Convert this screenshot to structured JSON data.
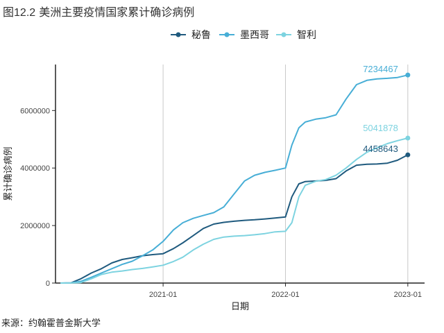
{
  "title_prefix": "图",
  "title_number": "12.2",
  "title_text": "美洲主要疫情国家累计确诊病例",
  "source": "来源：约翰霍普金斯大学",
  "colors": {
    "秘鲁": "#1f5a7e",
    "墨西哥": "#47aed6",
    "智利": "#7dd3e0"
  },
  "chart_data": {
    "type": "line",
    "xlabel": "日期",
    "ylabel": "累计确诊病例",
    "x_ticks": [
      "2021-01",
      "2022-01",
      "2023-01"
    ],
    "y_ticks": [
      0,
      2000000,
      4000000,
      6000000
    ],
    "ylim": [
      0,
      7600000
    ],
    "xlim": [
      "2020-02-15",
      "2023-02-20"
    ],
    "grid": "vertical major lines at x ticks",
    "legend_position": "top",
    "series": [
      {
        "name": "秘鲁",
        "end_label": "4458643",
        "points": [
          [
            "2020-03-01",
            0
          ],
          [
            "2020-04-01",
            5000
          ],
          [
            "2020-05-01",
            150000
          ],
          [
            "2020-06-01",
            350000
          ],
          [
            "2020-07-01",
            500000
          ],
          [
            "2020-08-01",
            700000
          ],
          [
            "2020-09-01",
            820000
          ],
          [
            "2020-10-01",
            880000
          ],
          [
            "2020-11-01",
            950000
          ],
          [
            "2020-12-01",
            990000
          ],
          [
            "2021-01-01",
            1020000
          ],
          [
            "2021-02-01",
            1200000
          ],
          [
            "2021-03-01",
            1400000
          ],
          [
            "2021-04-01",
            1650000
          ],
          [
            "2021-05-01",
            1900000
          ],
          [
            "2021-06-01",
            2050000
          ],
          [
            "2021-07-01",
            2110000
          ],
          [
            "2021-08-01",
            2150000
          ],
          [
            "2021-09-01",
            2180000
          ],
          [
            "2021-10-01",
            2200000
          ],
          [
            "2021-11-01",
            2230000
          ],
          [
            "2021-12-01",
            2260000
          ],
          [
            "2022-01-01",
            2300000
          ],
          [
            "2022-01-20",
            3000000
          ],
          [
            "2022-02-10",
            3450000
          ],
          [
            "2022-03-01",
            3530000
          ],
          [
            "2022-04-01",
            3550000
          ],
          [
            "2022-05-01",
            3570000
          ],
          [
            "2022-06-01",
            3630000
          ],
          [
            "2022-07-01",
            3900000
          ],
          [
            "2022-08-01",
            4100000
          ],
          [
            "2022-09-01",
            4130000
          ],
          [
            "2022-10-01",
            4140000
          ],
          [
            "2022-11-01",
            4170000
          ],
          [
            "2022-12-01",
            4270000
          ],
          [
            "2023-01-01",
            4458643
          ]
        ]
      },
      {
        "name": "墨西哥",
        "end_label": "7234467",
        "points": [
          [
            "2020-03-01",
            0
          ],
          [
            "2020-04-01",
            5000
          ],
          [
            "2020-05-01",
            60000
          ],
          [
            "2020-06-01",
            200000
          ],
          [
            "2020-07-01",
            350000
          ],
          [
            "2020-08-01",
            500000
          ],
          [
            "2020-09-01",
            650000
          ],
          [
            "2020-10-01",
            760000
          ],
          [
            "2020-11-01",
            950000
          ],
          [
            "2020-12-01",
            1150000
          ],
          [
            "2021-01-01",
            1450000
          ],
          [
            "2021-02-01",
            1850000
          ],
          [
            "2021-03-01",
            2100000
          ],
          [
            "2021-04-01",
            2250000
          ],
          [
            "2021-05-01",
            2350000
          ],
          [
            "2021-06-01",
            2450000
          ],
          [
            "2021-07-01",
            2650000
          ],
          [
            "2021-08-01",
            3100000
          ],
          [
            "2021-09-01",
            3550000
          ],
          [
            "2021-10-01",
            3750000
          ],
          [
            "2021-11-01",
            3850000
          ],
          [
            "2021-12-01",
            3920000
          ],
          [
            "2022-01-01",
            4000000
          ],
          [
            "2022-01-20",
            4800000
          ],
          [
            "2022-02-10",
            5400000
          ],
          [
            "2022-03-01",
            5600000
          ],
          [
            "2022-04-01",
            5700000
          ],
          [
            "2022-05-01",
            5750000
          ],
          [
            "2022-06-01",
            5850000
          ],
          [
            "2022-07-01",
            6400000
          ],
          [
            "2022-08-01",
            6900000
          ],
          [
            "2022-09-01",
            7050000
          ],
          [
            "2022-10-01",
            7100000
          ],
          [
            "2022-11-01",
            7120000
          ],
          [
            "2022-12-01",
            7150000
          ],
          [
            "2023-01-01",
            7234467
          ]
        ]
      },
      {
        "name": "智利",
        "end_label": "5041878",
        "points": [
          [
            "2020-03-01",
            0
          ],
          [
            "2020-04-01",
            3000
          ],
          [
            "2020-05-01",
            20000
          ],
          [
            "2020-06-01",
            150000
          ],
          [
            "2020-07-01",
            300000
          ],
          [
            "2020-08-01",
            380000
          ],
          [
            "2020-09-01",
            420000
          ],
          [
            "2020-10-01",
            470000
          ],
          [
            "2020-11-01",
            510000
          ],
          [
            "2020-12-01",
            560000
          ],
          [
            "2021-01-01",
            620000
          ],
          [
            "2021-02-01",
            750000
          ],
          [
            "2021-03-01",
            900000
          ],
          [
            "2021-04-01",
            1150000
          ],
          [
            "2021-05-01",
            1350000
          ],
          [
            "2021-06-01",
            1520000
          ],
          [
            "2021-07-01",
            1600000
          ],
          [
            "2021-08-01",
            1630000
          ],
          [
            "2021-09-01",
            1650000
          ],
          [
            "2021-10-01",
            1680000
          ],
          [
            "2021-11-01",
            1720000
          ],
          [
            "2021-12-01",
            1780000
          ],
          [
            "2022-01-01",
            1800000
          ],
          [
            "2022-01-20",
            2100000
          ],
          [
            "2022-02-10",
            3000000
          ],
          [
            "2022-03-01",
            3400000
          ],
          [
            "2022-04-01",
            3540000
          ],
          [
            "2022-05-01",
            3600000
          ],
          [
            "2022-06-01",
            3750000
          ],
          [
            "2022-07-01",
            4000000
          ],
          [
            "2022-08-01",
            4300000
          ],
          [
            "2022-09-01",
            4550000
          ],
          [
            "2022-10-01",
            4700000
          ],
          [
            "2022-11-01",
            4850000
          ],
          [
            "2022-12-01",
            4950000
          ],
          [
            "2023-01-01",
            5041878
          ]
        ]
      }
    ]
  }
}
